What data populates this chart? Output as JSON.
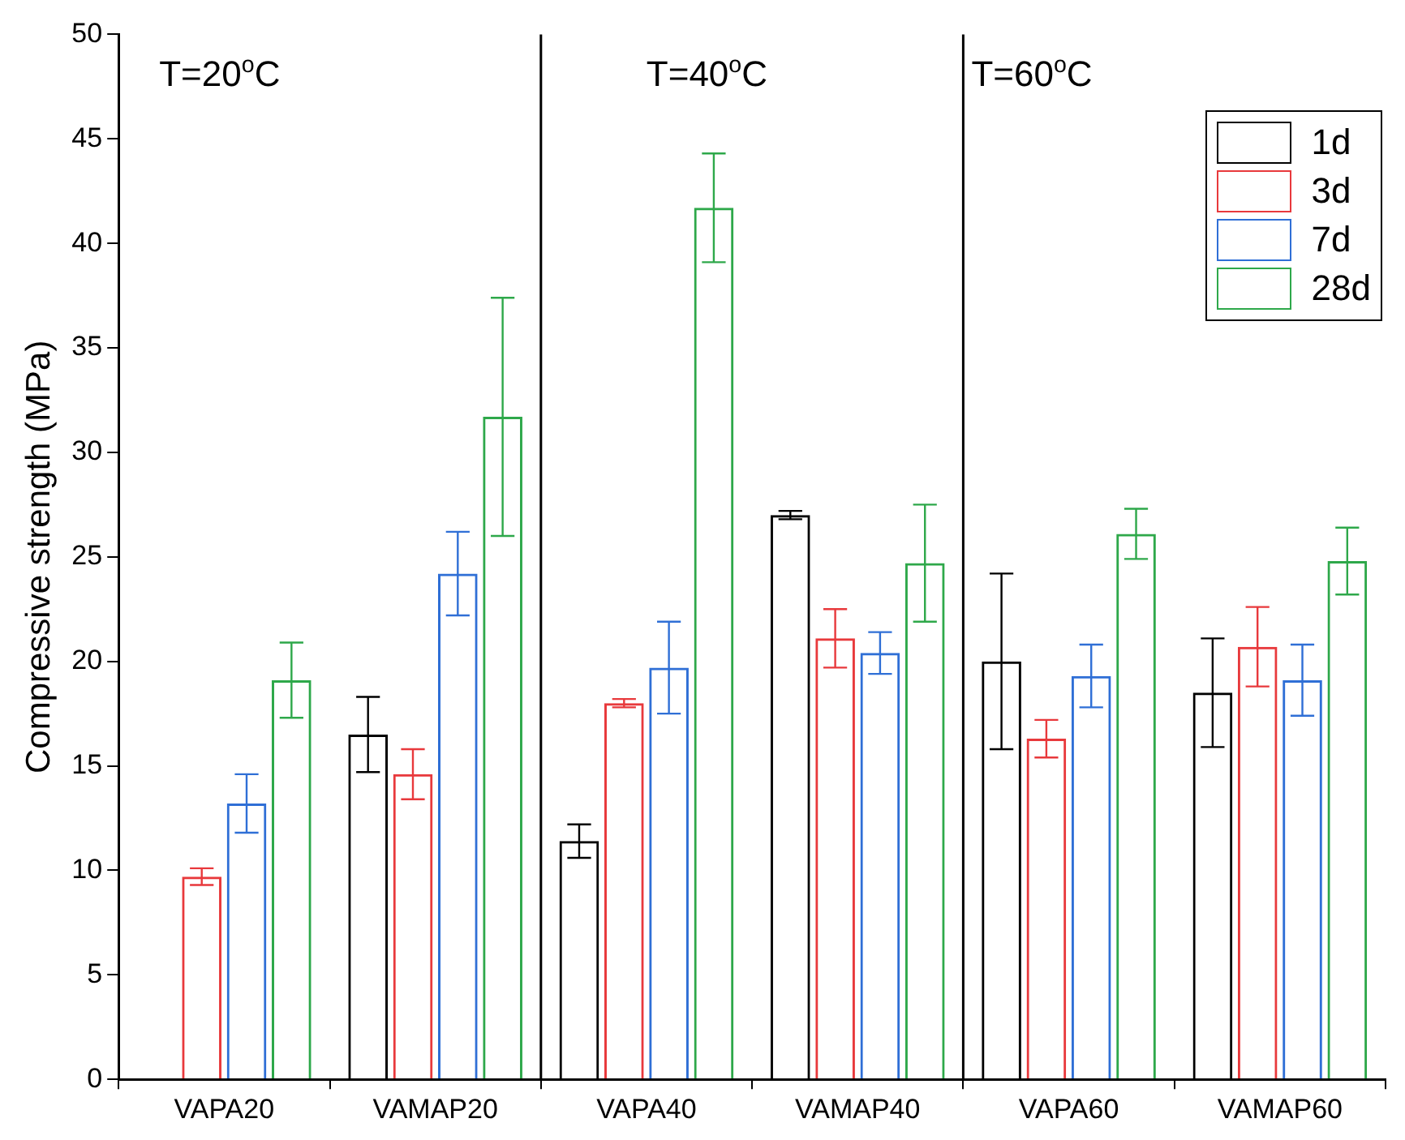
{
  "chart_data": {
    "type": "bar",
    "ylabel": "Compressive strength (MPa)",
    "categories": [
      "VAPA20",
      "VAMAP20",
      "VAPA40",
      "VAMAP40",
      "VAPA60",
      "VAMAP60"
    ],
    "series": [
      {
        "name": "1d",
        "color": "#000000",
        "values": [
          null,
          16.5,
          11.4,
          27.0,
          20.0,
          18.5
        ],
        "errors": [
          null,
          1.8,
          0.8,
          0.2,
          4.2,
          2.6
        ]
      },
      {
        "name": "3d",
        "color": "#e8393c",
        "values": [
          9.7,
          14.6,
          18.0,
          21.1,
          16.3,
          20.7
        ],
        "errors": [
          0.4,
          1.2,
          0.2,
          1.4,
          0.9,
          1.9
        ]
      },
      {
        "name": "7d",
        "color": "#2f6fd6",
        "values": [
          13.2,
          24.2,
          19.7,
          20.4,
          19.3,
          19.1
        ],
        "errors": [
          1.4,
          2.0,
          2.2,
          1.0,
          1.5,
          1.7
        ]
      },
      {
        "name": "28d",
        "color": "#2ea84a",
        "values": [
          19.1,
          31.7,
          41.7,
          24.7,
          26.1,
          24.8
        ],
        "errors": [
          1.8,
          5.7,
          2.6,
          2.8,
          1.2,
          1.6
        ]
      }
    ],
    "ylim": [
      0,
      50
    ],
    "yticks": [
      0,
      5,
      10,
      15,
      20,
      25,
      30,
      35,
      40,
      45,
      50
    ],
    "grid": false,
    "legend": "top right",
    "annotations": [
      "T=20$^{o}$C",
      "T=40$^{o}$C",
      "T=60$^{o}$C"
    ]
  }
}
